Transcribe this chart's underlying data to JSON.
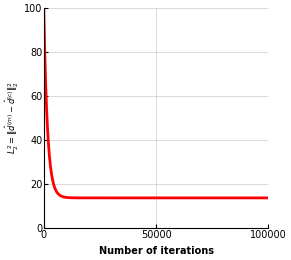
{
  "x_max": 100000,
  "y_max": 100,
  "y_min": 0,
  "x_ticks": [
    0,
    50000,
    100000
  ],
  "y_ticks": [
    0,
    20,
    40,
    60,
    80,
    100
  ],
  "line_color": "#ff0000",
  "line_width": 2.0,
  "xlabel": "Number of iterations",
  "background_color": "#ffffff",
  "grid_color": "#cccccc",
  "start_value": 100,
  "end_value": 13.5,
  "decay_rate": 0.0006
}
